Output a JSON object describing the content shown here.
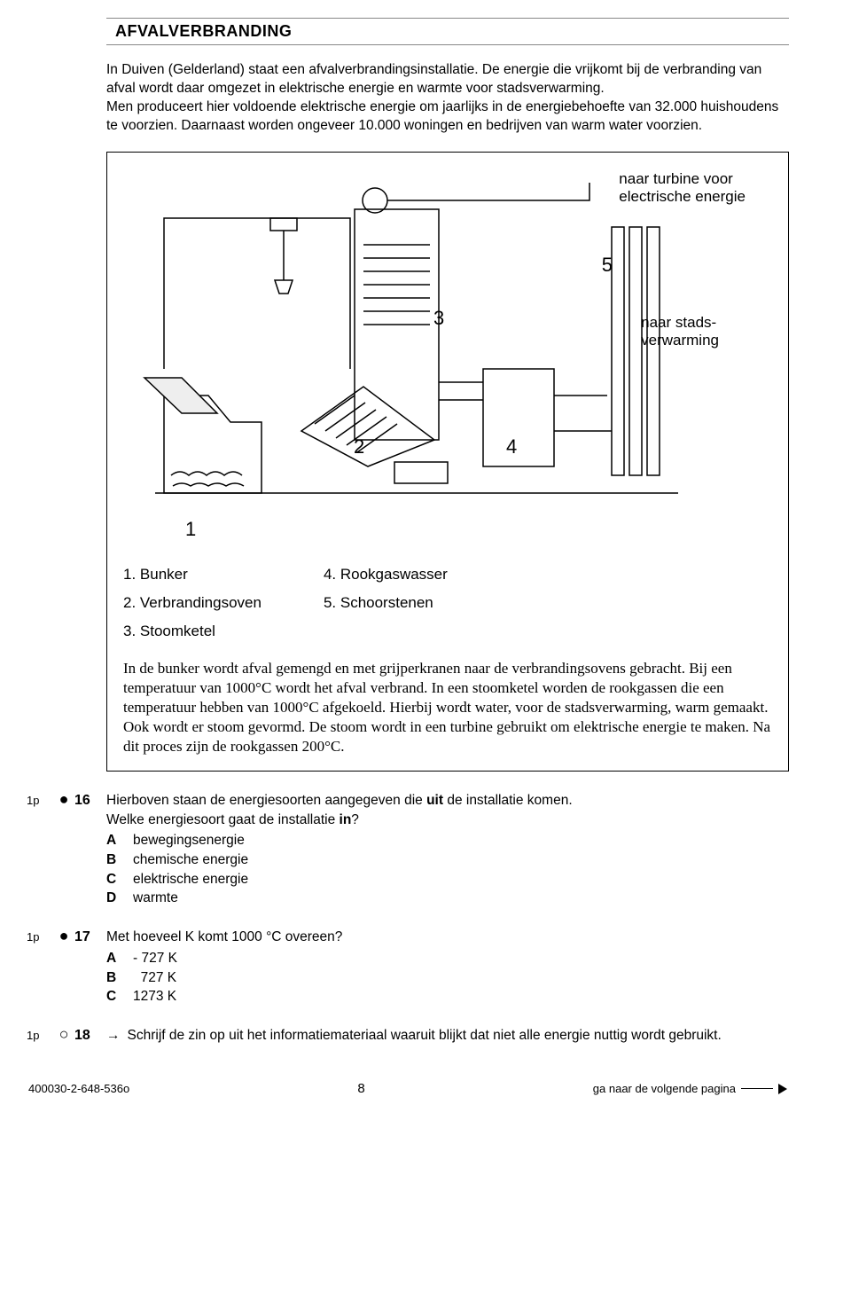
{
  "heading": "AFVALVERBRANDING",
  "intro": "In Duiven (Gelderland) staat een afvalverbrandingsinstallatie. De energie die vrijkomt bij de verbranding van afval wordt daar omgezet in elektrische energie en warmte voor stadsverwarming.\nMen produceert hier voldoende elektrische energie om jaarlijks in de energiebehoefte van 32.000 huishoudens te voorzien. Daarnaast worden ongeveer 10.000 woningen en bedrijven van warm water voorzien.",
  "diagram": {
    "label_turbine_l1": "naar turbine voor",
    "label_turbine_l2": "electrische energie",
    "label_stads_l1": "naar stads-",
    "label_stads_l2": "verwarming",
    "n1": "1",
    "n2": "2",
    "n3": "3",
    "n4": "4",
    "n5": "5"
  },
  "legend": {
    "c1a": "1. Bunker",
    "c1b": "2. Verbrandingsoven",
    "c1c": "3. Stoomketel",
    "c2a": "4. Rookgaswasser",
    "c2b": "5. Schoorstenen"
  },
  "explain": "In de bunker wordt afval gemengd en met grijperkranen naar de verbrandingsovens gebracht. Bij een temperatuur van 1000°C wordt het afval verbrand. In een stoomketel worden de rookgassen die een temperatuur hebben van 1000°C afgekoeld. Hierbij wordt water, voor de stadsverwarming, warm gemaakt. Ook wordt er stoom gevormd. De stoom wordt in een turbine gebruikt om elektrische energie te maken. Na dit proces zijn de rookgassen 200°C.",
  "q16": {
    "points": "1p",
    "marker": "●",
    "num": "16",
    "text1": "Hierboven staan de energiesoorten aangegeven die ",
    "bold": "uit",
    "text2": " de installatie komen.",
    "line2": "Welke energiesoort gaat de installatie ",
    "bold2": "in",
    "line2b": "?",
    "A": "bewegingsenergie",
    "B": "chemische energie",
    "C": "elektrische energie",
    "D": "warmte"
  },
  "q17": {
    "points": "1p",
    "marker": "●",
    "num": "17",
    "text": "Met hoeveel K komt 1000 °C overeen?",
    "A": "- 727 K",
    "B": "  727 K",
    "C": "1273 K"
  },
  "q18": {
    "points": "1p",
    "marker": "○",
    "num": "18",
    "arrow": "→",
    "text": "Schrijf de zin op uit het informatiemateriaal waaruit blijkt dat niet alle energie nuttig wordt gebruikt."
  },
  "footer": {
    "left": "400030-2-648-536o",
    "mid": "8",
    "right": "ga naar de volgende pagina"
  }
}
